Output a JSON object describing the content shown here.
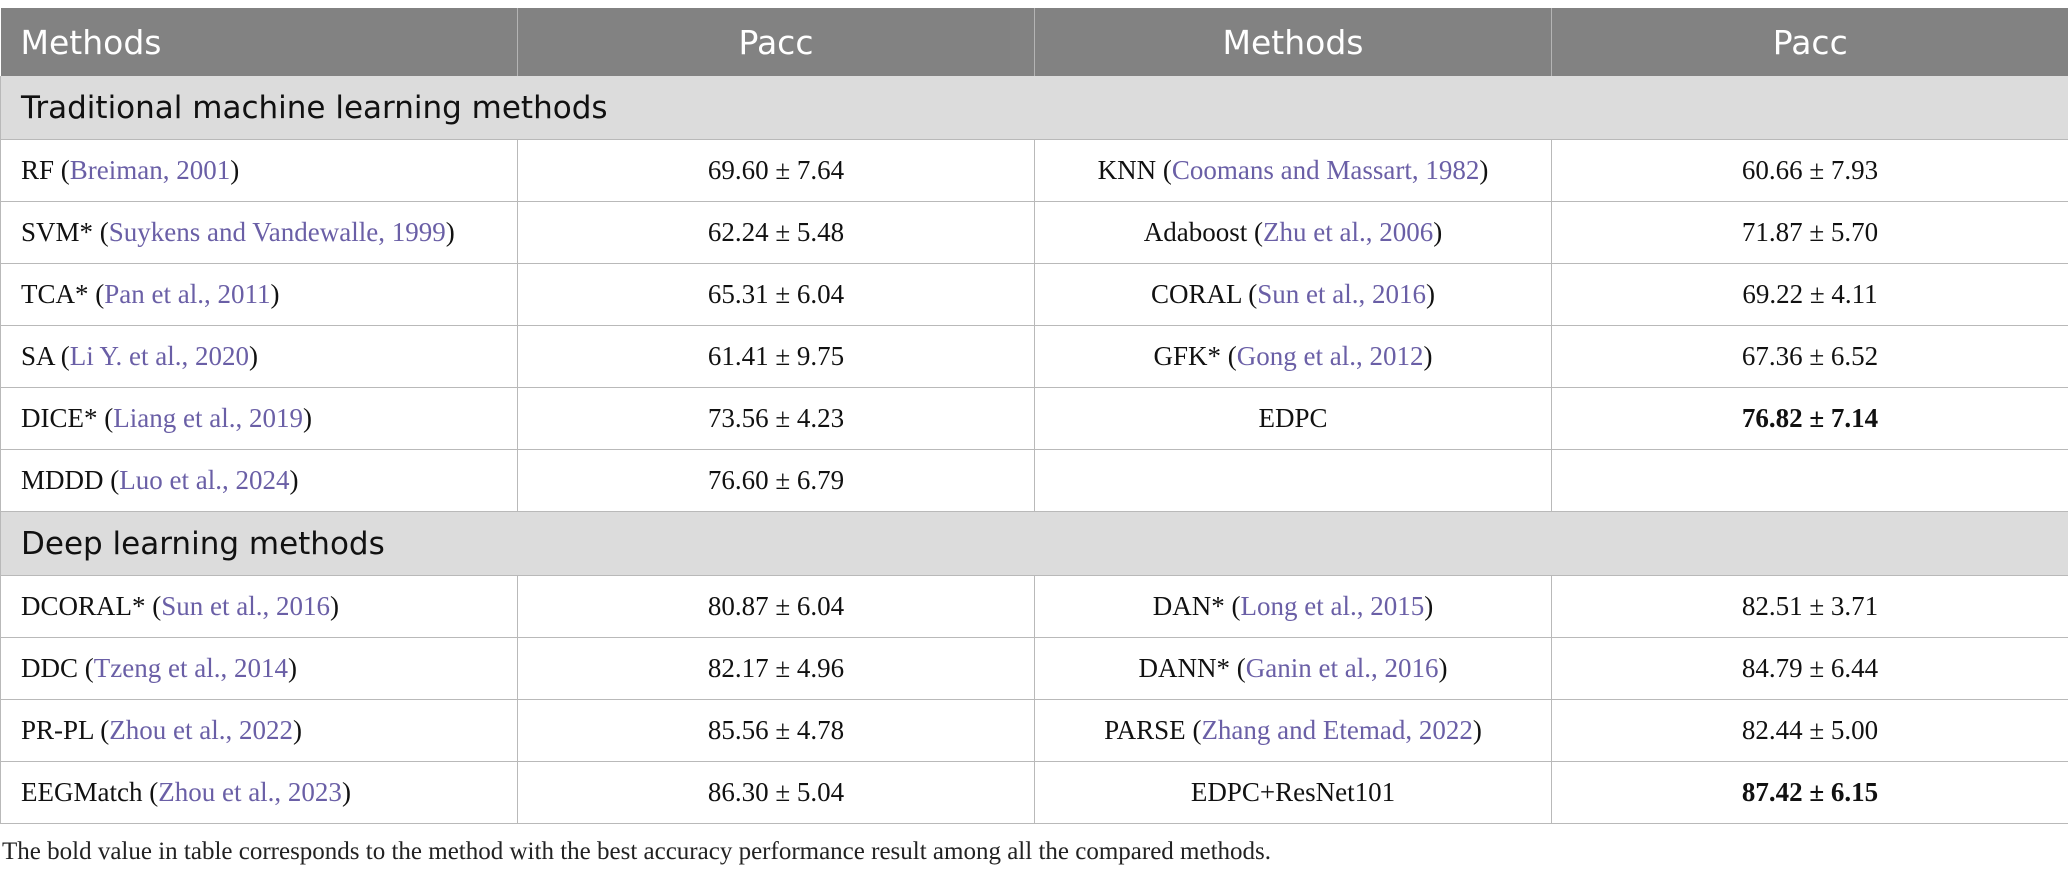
{
  "header": {
    "col1": "Methods",
    "col2": "Pacc",
    "col3": "Methods",
    "col4": "Pacc"
  },
  "sections": [
    {
      "title": "Traditional machine learning methods",
      "rows": [
        {
          "m1": "RF",
          "r1": "Breiman, 2001",
          "v1": "69.60 ± 7.64",
          "m2": "KNN",
          "r2": "Coomans and Massart, 1982",
          "v2": "60.66 ± 7.93"
        },
        {
          "m1": "SVM*",
          "r1": "Suykens and Vandewalle, 1999",
          "v1": "62.24 ± 5.48",
          "m2": "Adaboost",
          "r2": "Zhu et al., 2006",
          "v2": "71.87 ± 5.70"
        },
        {
          "m1": "TCA*",
          "r1": "Pan et al., 2011",
          "v1": "65.31 ± 6.04",
          "m2": "CORAL",
          "r2": "Sun et al., 2016",
          "v2": "69.22 ± 4.11"
        },
        {
          "m1": "SA",
          "r1": "Li Y. et al., 2020",
          "v1": "61.41 ± 9.75",
          "m2": "GFK*",
          "r2": "Gong et al., 2012",
          "v2": "67.36 ± 6.52"
        },
        {
          "m1": "DICE*",
          "r1": "Liang et al., 2019",
          "v1": "73.56 ± 4.23",
          "m2": "EDPC",
          "r2": "",
          "v2": "76.82 ± 7.14",
          "v2_bold": true
        },
        {
          "m1": "MDDD",
          "r1": "Luo et al., 2024",
          "v1": "76.60 ± 6.79",
          "m2": "",
          "r2": "",
          "v2": ""
        }
      ]
    },
    {
      "title": "Deep learning methods",
      "rows": [
        {
          "m1": "DCORAL*",
          "r1": "Sun et al., 2016",
          "v1": "80.87 ± 6.04",
          "m2": "DAN*",
          "r2": "Long et al., 2015",
          "v2": "82.51 ± 3.71"
        },
        {
          "m1": "DDC",
          "r1": "Tzeng et al., 2014",
          "v1": "82.17 ± 4.96",
          "m2": "DANN*",
          "r2": "Ganin et al., 2016",
          "v2": "84.79 ± 6.44"
        },
        {
          "m1": "PR-PL",
          "r1": "Zhou et al., 2022",
          "v1": "85.56 ± 4.78",
          "m2": "PARSE",
          "r2": "Zhang and Etemad, 2022",
          "v2": "82.44 ± 5.00"
        },
        {
          "m1": "EEGMatch",
          "r1": "Zhou et al., 2023",
          "v1": "86.30 ± 5.04",
          "m2": "EDPC+ResNet101",
          "r2": "",
          "v2": "87.42 ± 6.15",
          "v2_bold": true
        }
      ]
    }
  ],
  "footnote": "The bold value in table corresponds to the method with the best accuracy performance result among all the compared methods."
}
